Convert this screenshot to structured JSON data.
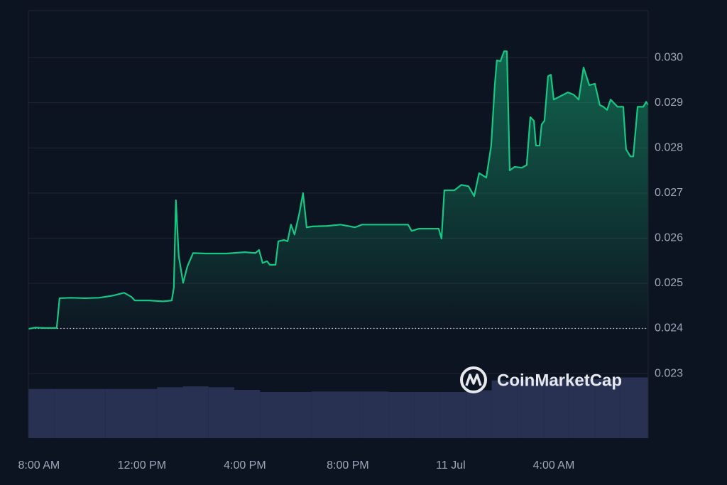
{
  "chart_data": {
    "type": "line",
    "watermark": "CoinMarketCap",
    "x": [
      7.59,
      7.86,
      8.14,
      8.69,
      8.8,
      9.24,
      9.79,
      10.34,
      10.9,
      11.31,
      11.59,
      11.72,
      12.28,
      12.83,
      13.16,
      13.24,
      13.32,
      13.43,
      13.6,
      13.77,
      13.99,
      14.48,
      15.31,
      16.0,
      16.41,
      16.55,
      16.69,
      16.86,
      16.97,
      17.19,
      17.3,
      17.52,
      17.66,
      17.79,
      17.93,
      18.12,
      18.26,
      18.4,
      18.62,
      19.17,
      19.72,
      20.28,
      20.55,
      21.38,
      21.93,
      22.34,
      22.48,
      22.76,
      23.31,
      23.53,
      23.64,
      23.75,
      24.14,
      24.41,
      24.69,
      24.91,
      25.1,
      25.38,
      25.57,
      25.71,
      25.79,
      25.93,
      26.07,
      26.18,
      26.29,
      26.48,
      26.76,
      26.95,
      27.09,
      27.23,
      27.31,
      27.45,
      27.53,
      27.64,
      27.78,
      27.89,
      28.0,
      28.28,
      28.55,
      28.77,
      28.97,
      29.16,
      29.38,
      29.6,
      29.79,
      29.93,
      30.07,
      30.21,
      30.48,
      30.7,
      30.81,
      30.98,
      31.09,
      31.26,
      31.48,
      31.59,
      31.67
    ],
    "series": [
      {
        "color": "#16c784",
        "values": [
          0.02399,
          0.02402,
          0.02401,
          0.02401,
          0.02467,
          0.02468,
          0.02467,
          0.02468,
          0.02473,
          0.02479,
          0.0247,
          0.02462,
          0.02462,
          0.0246,
          0.02462,
          0.0249,
          0.02684,
          0.02561,
          0.02501,
          0.02538,
          0.02567,
          0.02566,
          0.02566,
          0.02569,
          0.02567,
          0.02574,
          0.02545,
          0.02549,
          0.02541,
          0.02541,
          0.02593,
          0.02596,
          0.02593,
          0.0263,
          0.02608,
          0.02656,
          0.027,
          0.02624,
          0.02626,
          0.02627,
          0.0263,
          0.02624,
          0.0263,
          0.0263,
          0.0263,
          0.0263,
          0.02616,
          0.02621,
          0.02621,
          0.02621,
          0.02599,
          0.02706,
          0.02706,
          0.02718,
          0.02715,
          0.02693,
          0.02744,
          0.02734,
          0.02805,
          0.02939,
          0.02994,
          0.02992,
          0.03014,
          0.03014,
          0.0275,
          0.02758,
          0.02756,
          0.02762,
          0.02868,
          0.0286,
          0.02805,
          0.02805,
          0.02852,
          0.0286,
          0.02959,
          0.02962,
          0.02907,
          0.02915,
          0.02923,
          0.02918,
          0.02907,
          0.02978,
          0.02939,
          0.02942,
          0.02895,
          0.02891,
          0.02884,
          0.02907,
          0.02891,
          0.02891,
          0.02797,
          0.02781,
          0.02781,
          0.02891,
          0.02891,
          0.02902,
          0.02895
        ]
      }
    ],
    "baseline": 0.024,
    "volume": {
      "color": "#283152",
      "bins": [
        7.59,
        8.59,
        9.59,
        10.59,
        11.59,
        12.59,
        13.59,
        14.59,
        15.59,
        16.59,
        17.59,
        18.59,
        19.59,
        20.59,
        21.59,
        22.59,
        23.59,
        24.59,
        25.59,
        26.59,
        27.59,
        28.59,
        29.59,
        30.59,
        31.67
      ],
      "values": [
        11.5,
        11.5,
        11.5,
        11.5,
        11.5,
        11.9,
        12.1,
        11.9,
        11.3,
        10.8,
        10.8,
        10.9,
        10.9,
        10.9,
        10.8,
        10.8,
        10.8,
        11.2,
        13.5,
        13.7,
        13.8,
        13.8,
        13.8,
        14.2
      ],
      "ylim": [
        0,
        100
      ]
    },
    "xlim": [
      7.59,
      31.67
    ],
    "xticks": [
      {
        "value": 8,
        "label": "8:00 AM"
      },
      {
        "value": 12,
        "label": "12:00 PM"
      },
      {
        "value": 16,
        "label": "4:00 PM"
      },
      {
        "value": 20,
        "label": "8:00 PM"
      },
      {
        "value": 24,
        "label": "11 Jul"
      },
      {
        "value": 28,
        "label": "4:00 AM"
      }
    ],
    "ylim": [
      0.02157,
      0.03104
    ],
    "yticks": [
      {
        "value": 0.023,
        "label": "0.023"
      },
      {
        "value": 0.024,
        "label": "0.024"
      },
      {
        "value": 0.025,
        "label": "0.025"
      },
      {
        "value": 0.026,
        "label": "0.026"
      },
      {
        "value": 0.027,
        "label": "0.027"
      },
      {
        "value": 0.028,
        "label": "0.028"
      },
      {
        "value": 0.029,
        "label": "0.029"
      },
      {
        "value": 0.03,
        "label": "0.030"
      }
    ],
    "grid": true
  }
}
